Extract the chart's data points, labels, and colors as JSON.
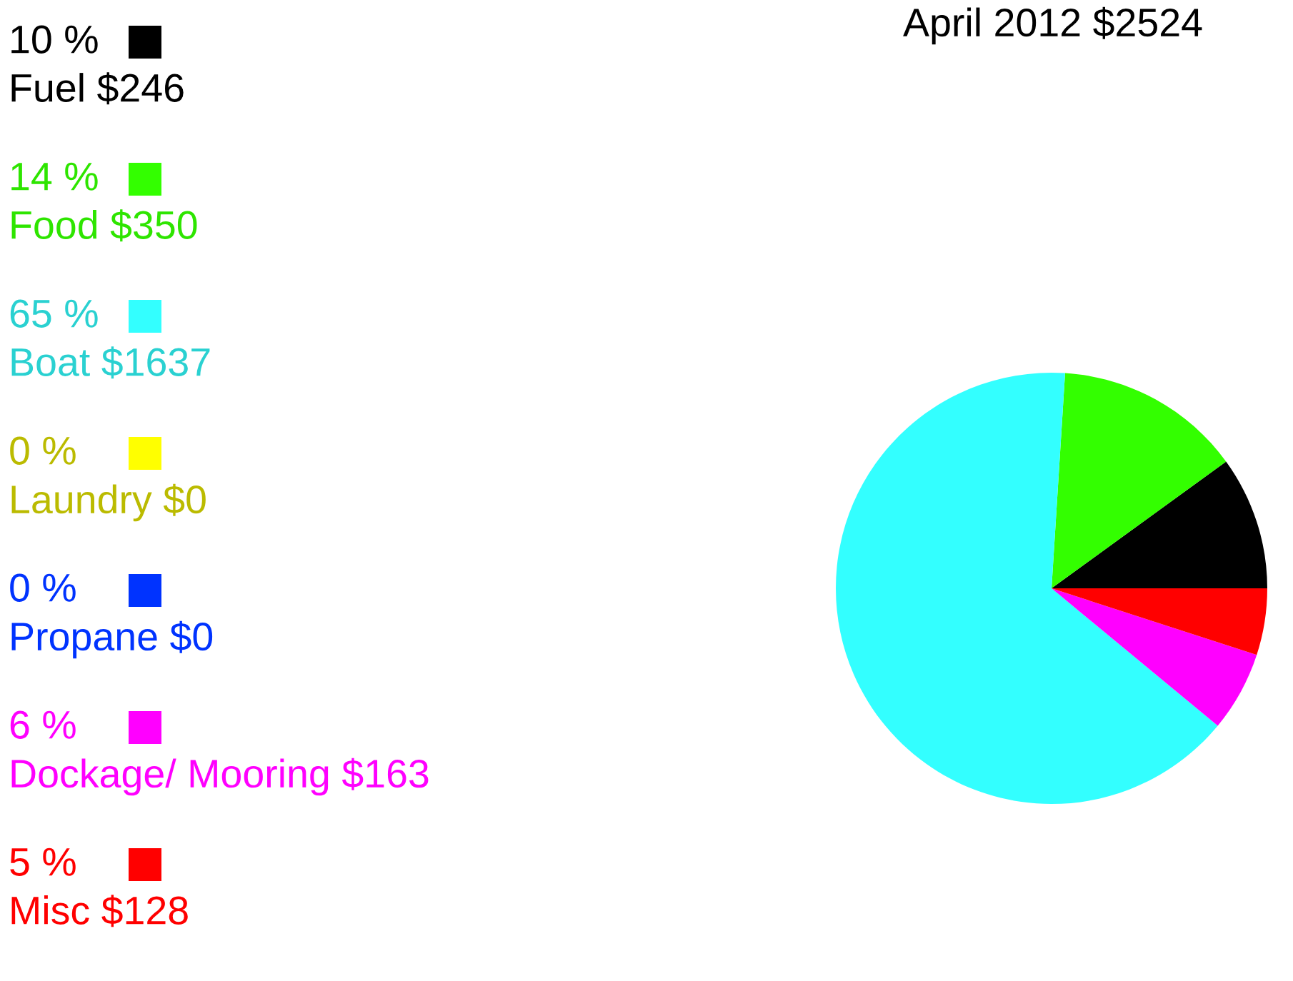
{
  "chart_data": {
    "type": "pie",
    "title": "April 2012 $2524",
    "categories": [
      "Fuel $246",
      "Food $350",
      "Boat $1637",
      "Laundry $0",
      "Propane $0",
      "Dockage/ Mooring $163",
      "Misc $128"
    ],
    "values": [
      10,
      14,
      65,
      0,
      0,
      6,
      5
    ],
    "value_labels": [
      "10 %",
      "14 %",
      "65 %",
      "0 %",
      "0 %",
      "6 %",
      "5 %"
    ],
    "colors": [
      "#000000",
      "#33ff00",
      "#33ffff",
      "#ffff00",
      "#0033ff",
      "#ff00ff",
      "#ff0000"
    ],
    "legend": "left"
  }
}
